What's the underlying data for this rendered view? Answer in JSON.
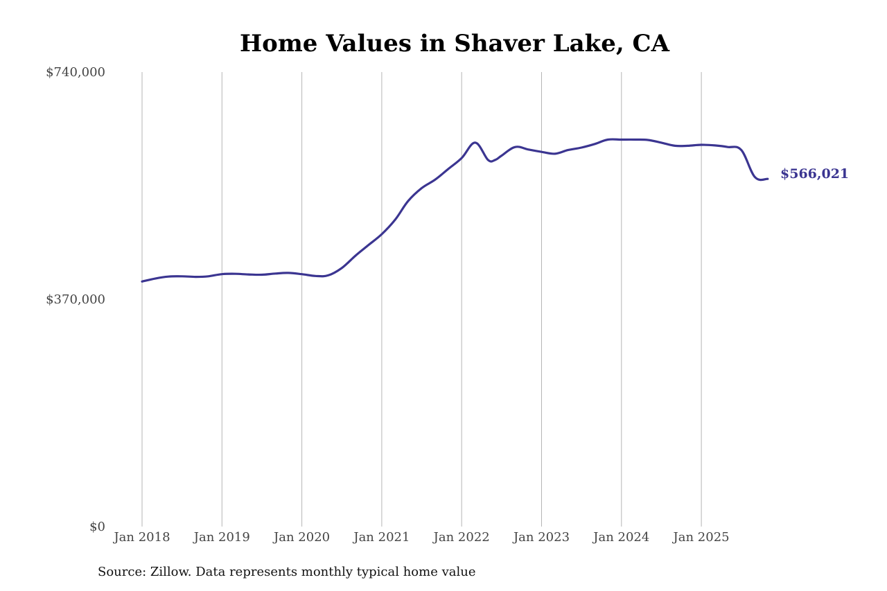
{
  "colors": {
    "series": "#3b3591",
    "grid": "#b5b5b5",
    "text": "#444444"
  },
  "footer": {
    "source": "Source: Zillow. Data represents monthly typical home value"
  },
  "chart_data": {
    "type": "line",
    "title": "Home Values in Shaver Lake, CA",
    "xlabel": "",
    "ylabel": "",
    "ylim": [
      0,
      740000
    ],
    "yticks": [
      {
        "value": 740000,
        "label": "$740,000"
      },
      {
        "value": 370000,
        "label": "$370,000"
      },
      {
        "value": 0,
        "label": "$0"
      }
    ],
    "xlim": [
      2018.0,
      2025.83
    ],
    "xticks": [
      {
        "value": 2018,
        "label": "Jan 2018"
      },
      {
        "value": 2019,
        "label": "Jan 2019"
      },
      {
        "value": 2020,
        "label": "Jan 2020"
      },
      {
        "value": 2021,
        "label": "Jan 2021"
      },
      {
        "value": 2022,
        "label": "Jan 2022"
      },
      {
        "value": 2023,
        "label": "Jan 2023"
      },
      {
        "value": 2024,
        "label": "Jan 2024"
      },
      {
        "value": 2025,
        "label": "Jan 2025"
      }
    ],
    "grid": "vertical",
    "end_label": "$566,021",
    "series": [
      {
        "name": "Typical home value",
        "x": [
          2018.0,
          2018.17,
          2018.33,
          2018.5,
          2018.67,
          2018.83,
          2019.0,
          2019.17,
          2019.33,
          2019.5,
          2019.67,
          2019.83,
          2020.0,
          2020.17,
          2020.33,
          2020.5,
          2020.67,
          2020.83,
          2021.0,
          2021.17,
          2021.33,
          2021.5,
          2021.67,
          2021.83,
          2022.0,
          2022.17,
          2022.33,
          2022.42,
          2022.5,
          2022.67,
          2022.83,
          2023.0,
          2023.17,
          2023.33,
          2023.5,
          2023.67,
          2023.83,
          2024.0,
          2024.17,
          2024.33,
          2024.5,
          2024.67,
          2024.83,
          2025.0,
          2025.17,
          2025.33,
          2025.5,
          2025.67,
          2025.83
        ],
        "y": [
          399000,
          404000,
          407000,
          407500,
          406500,
          407500,
          411000,
          411500,
          410500,
          410000,
          412000,
          413000,
          411000,
          408000,
          409000,
          421000,
          441000,
          458000,
          476000,
          500000,
          530000,
          551000,
          565000,
          582000,
          600000,
          625000,
          597000,
          597000,
          604000,
          618000,
          614000,
          610000,
          607000,
          613000,
          617000,
          623000,
          630000,
          630000,
          630000,
          629500,
          625000,
          620000,
          620000,
          621500,
          620500,
          618000,
          613000,
          569000,
          566021
        ]
      }
    ]
  }
}
